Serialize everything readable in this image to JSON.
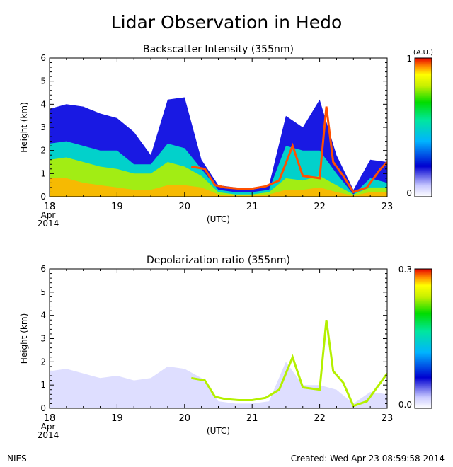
{
  "page": {
    "title": "Lidar Observation in Hedo",
    "footer_left": "NIES",
    "footer_right": "Created: Wed Apr 23 08:59:58 2014"
  },
  "colorscale": [
    "#f0f0ff",
    "#c8c8ff",
    "#6464ff",
    "#0000e0",
    "#00c8ff",
    "#00e6c8",
    "#00e600",
    "#b4f000",
    "#ffff00",
    "#ffb400",
    "#ff5000",
    "#e60000"
  ],
  "chart_data": [
    {
      "type": "heatmap",
      "title": "Backscatter Intensity (355nm)",
      "ylabel": "Height (km)",
      "xlabel": "(UTC)",
      "x_ticks": [
        "18",
        "19",
        "20",
        "21",
        "22",
        "23"
      ],
      "x_start_label": [
        "Apr",
        "2014"
      ],
      "xlim": [
        18,
        23
      ],
      "ylim": [
        0,
        6
      ],
      "y_ticks": [
        "0",
        "1",
        "2",
        "3",
        "4",
        "5",
        "6"
      ],
      "colorbar": {
        "unit": "(A.U.)",
        "min_label": "0",
        "max_label": "1",
        "range": [
          0,
          1
        ]
      },
      "layers": [
        {
          "x": [
            18.0,
            18.25,
            18.5,
            18.75,
            19.0,
            19.25,
            19.5,
            19.75,
            20.0,
            20.25,
            20.5,
            20.75,
            21.0,
            21.25,
            21.5,
            21.75,
            22.0,
            22.25,
            22.5,
            22.75,
            23.0
          ],
          "top": [
            3.8,
            4.0,
            3.9,
            3.6,
            3.4,
            2.8,
            1.8,
            4.2,
            4.3,
            1.6,
            0.5,
            0.4,
            0.3,
            0.5,
            3.5,
            3.0,
            4.2,
            1.8,
            0.3,
            1.6,
            1.5
          ],
          "level": 0.25
        },
        {
          "x": [
            18.0,
            18.25,
            18.5,
            18.75,
            19.0,
            19.25,
            19.5,
            19.75,
            20.0,
            20.25,
            20.5,
            20.75,
            21.0,
            21.25,
            21.5,
            21.75,
            22.0,
            22.25,
            22.5,
            22.75,
            23.0
          ],
          "top": [
            2.3,
            2.4,
            2.2,
            2.0,
            2.0,
            1.4,
            1.4,
            2.3,
            2.1,
            1.2,
            0.3,
            0.2,
            0.2,
            0.3,
            2.2,
            2.0,
            2.0,
            1.0,
            0.1,
            0.8,
            0.6
          ],
          "level": 0.45
        },
        {
          "x": [
            18.0,
            18.25,
            18.5,
            18.75,
            19.0,
            19.25,
            19.5,
            19.75,
            20.0,
            20.25,
            20.5,
            20.75,
            21.0,
            21.25,
            21.5,
            21.75,
            22.0,
            22.25,
            22.5,
            22.75,
            23.0
          ],
          "top": [
            1.6,
            1.7,
            1.5,
            1.3,
            1.2,
            1.0,
            1.0,
            1.5,
            1.3,
            0.9,
            0.2,
            0.1,
            0.1,
            0.2,
            0.8,
            0.7,
            0.9,
            0.5,
            0.1,
            0.4,
            0.4
          ],
          "level": 0.65
        },
        {
          "x": [
            18.0,
            18.25,
            18.5,
            18.75,
            19.0,
            19.25,
            19.5,
            19.75,
            20.0,
            20.25,
            20.5,
            20.75,
            21.0,
            21.25,
            21.5,
            21.75,
            22.0,
            22.25,
            22.5,
            22.75,
            23.0
          ],
          "top": [
            0.8,
            0.8,
            0.6,
            0.5,
            0.4,
            0.3,
            0.3,
            0.5,
            0.5,
            0.4,
            0.1,
            0.05,
            0.05,
            0.1,
            0.3,
            0.3,
            0.4,
            0.2,
            0.05,
            0.2,
            0.2
          ],
          "level": 0.85
        }
      ],
      "cloud_edges": [
        {
          "x": [
            20.1,
            20.3,
            20.45,
            20.6,
            20.8,
            21.0,
            21.2,
            21.4,
            21.6,
            21.75,
            22.0,
            22.1,
            22.2,
            22.35,
            22.5,
            22.7,
            22.9,
            23.0
          ],
          "y": [
            1.3,
            1.2,
            0.5,
            0.4,
            0.35,
            0.35,
            0.45,
            0.7,
            2.2,
            0.9,
            0.8,
            3.9,
            1.5,
            0.9,
            0.2,
            0.4,
            1.2,
            1.5
          ],
          "level": 0.95
        }
      ]
    },
    {
      "type": "heatmap",
      "title": "Depolarization ratio (355nm)",
      "ylabel": "Height (km)",
      "xlabel": "(UTC)",
      "x_ticks": [
        "18",
        "19",
        "20",
        "21",
        "22",
        "23"
      ],
      "x_start_label": [
        "Apr",
        "2014"
      ],
      "xlim": [
        18,
        23
      ],
      "ylim": [
        0,
        6
      ],
      "y_ticks": [
        "0",
        "1",
        "2",
        "3",
        "4",
        "5",
        "6"
      ],
      "colorbar": {
        "unit": "",
        "min_label": "0.0",
        "max_label": "0.3",
        "range": [
          0,
          0.3
        ]
      },
      "layers": [
        {
          "x": [
            18.0,
            18.25,
            18.5,
            18.75,
            19.0,
            19.25,
            19.5,
            19.75,
            20.0,
            20.25,
            20.5,
            20.75,
            21.0,
            21.25,
            21.5,
            21.75,
            22.0,
            22.25,
            22.5,
            22.75,
            23.0
          ],
          "top": [
            1.6,
            1.7,
            1.5,
            1.3,
            1.4,
            1.2,
            1.3,
            1.8,
            1.7,
            1.3,
            0.3,
            0.2,
            0.2,
            0.3,
            2.0,
            1.0,
            1.0,
            0.8,
            0.2,
            0.7,
            0.6
          ],
          "level": 0.08
        }
      ],
      "cloud_edges": [
        {
          "x": [
            20.1,
            20.3,
            20.45,
            20.6,
            20.8,
            21.0,
            21.2,
            21.4,
            21.6,
            21.75,
            22.0,
            22.1,
            22.2,
            22.35,
            22.5,
            22.7,
            22.9,
            23.0
          ],
          "y": [
            1.3,
            1.2,
            0.5,
            0.4,
            0.35,
            0.35,
            0.45,
            0.8,
            2.2,
            0.9,
            0.8,
            3.8,
            1.6,
            1.1,
            0.1,
            0.3,
            1.1,
            1.5
          ],
          "level": 0.6
        }
      ]
    }
  ]
}
